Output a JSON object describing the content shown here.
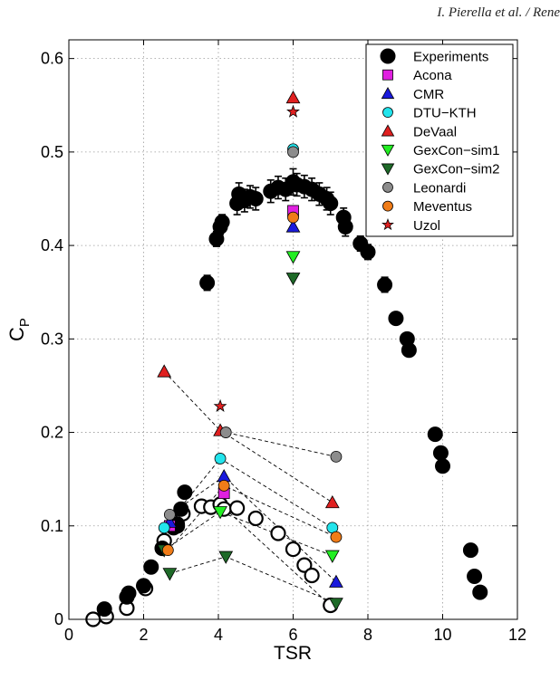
{
  "page": {
    "header_text": "I. Pierella et al. / Rene"
  },
  "chart_data": {
    "type": "scatter",
    "title": "",
    "xlabel": "TSR",
    "ylabel": "C",
    "ylabel_subscript": "P",
    "xlim": [
      0,
      12
    ],
    "ylim": [
      0,
      0.62
    ],
    "xticks": [
      0,
      2,
      4,
      6,
      8,
      10,
      12
    ],
    "yticks": [
      0,
      0.1,
      0.2,
      0.3,
      0.4,
      0.5,
      0.6
    ],
    "xtick_labels": [
      "0",
      "2",
      "4",
      "6",
      "8",
      "10",
      "12"
    ],
    "ytick_labels": [
      "0",
      "0.1",
      "0.2",
      "0.3",
      "0.4",
      "0.5",
      "0.6"
    ],
    "grid": true,
    "legend_position": "top-right",
    "experiments": {
      "name": "Experiments",
      "color": "#000000",
      "filled": [
        {
          "x": 0.95,
          "y": 0.011,
          "err": 0.004
        },
        {
          "x": 1.6,
          "y": 0.028,
          "err": 0.004
        },
        {
          "x": 1.55,
          "y": 0.024,
          "err": 0.004
        },
        {
          "x": 2.0,
          "y": 0.036,
          "err": 0.004
        },
        {
          "x": 2.2,
          "y": 0.056,
          "err": 0.004
        },
        {
          "x": 2.5,
          "y": 0.076,
          "err": 0.004
        },
        {
          "x": 2.8,
          "y": 0.098,
          "err": 0.004
        },
        {
          "x": 2.9,
          "y": 0.102,
          "err": 0.004
        },
        {
          "x": 3.0,
          "y": 0.118,
          "err": 0.004
        },
        {
          "x": 3.1,
          "y": 0.136,
          "err": 0.004
        },
        {
          "x": 3.7,
          "y": 0.36,
          "err": 0.008
        },
        {
          "x": 3.95,
          "y": 0.407,
          "err": 0.008
        },
        {
          "x": 4.05,
          "y": 0.42,
          "err": 0.008
        },
        {
          "x": 4.1,
          "y": 0.425,
          "err": 0.008
        },
        {
          "x": 4.5,
          "y": 0.445,
          "err": 0.012
        },
        {
          "x": 4.55,
          "y": 0.455,
          "err": 0.012
        },
        {
          "x": 4.7,
          "y": 0.448,
          "err": 0.012
        },
        {
          "x": 4.85,
          "y": 0.452,
          "err": 0.012
        },
        {
          "x": 5.0,
          "y": 0.45,
          "err": 0.012
        },
        {
          "x": 5.4,
          "y": 0.458,
          "err": 0.012
        },
        {
          "x": 5.6,
          "y": 0.462,
          "err": 0.012
        },
        {
          "x": 5.8,
          "y": 0.46,
          "err": 0.012
        },
        {
          "x": 6.0,
          "y": 0.468,
          "err": 0.014
        },
        {
          "x": 6.1,
          "y": 0.465,
          "err": 0.012
        },
        {
          "x": 6.3,
          "y": 0.463,
          "err": 0.012
        },
        {
          "x": 6.5,
          "y": 0.46,
          "err": 0.012
        },
        {
          "x": 6.7,
          "y": 0.455,
          "err": 0.012
        },
        {
          "x": 6.9,
          "y": 0.45,
          "err": 0.012
        },
        {
          "x": 7.0,
          "y": 0.445,
          "err": 0.012
        },
        {
          "x": 7.35,
          "y": 0.43,
          "err": 0.01
        },
        {
          "x": 7.4,
          "y": 0.42,
          "err": 0.01
        },
        {
          "x": 7.8,
          "y": 0.402,
          "err": 0.008
        },
        {
          "x": 8.0,
          "y": 0.393,
          "err": 0.008
        },
        {
          "x": 8.45,
          "y": 0.358,
          "err": 0.008
        },
        {
          "x": 8.75,
          "y": 0.322,
          "err": 0.006
        },
        {
          "x": 9.05,
          "y": 0.3,
          "err": 0.006
        },
        {
          "x": 9.1,
          "y": 0.288,
          "err": 0.006
        },
        {
          "x": 9.8,
          "y": 0.198,
          "err": 0.004
        },
        {
          "x": 9.95,
          "y": 0.178,
          "err": 0.004
        },
        {
          "x": 10.0,
          "y": 0.164,
          "err": 0.004
        },
        {
          "x": 10.75,
          "y": 0.074,
          "err": 0.003
        },
        {
          "x": 10.85,
          "y": 0.046,
          "err": 0.003
        },
        {
          "x": 11.0,
          "y": 0.029,
          "err": 0.003
        }
      ],
      "hollow": [
        {
          "x": 0.65,
          "y": 0.0
        },
        {
          "x": 1.0,
          "y": 0.003
        },
        {
          "x": 1.55,
          "y": 0.012
        },
        {
          "x": 2.05,
          "y": 0.033
        },
        {
          "x": 2.5,
          "y": 0.076
        },
        {
          "x": 2.55,
          "y": 0.084
        },
        {
          "x": 2.9,
          "y": 0.1
        },
        {
          "x": 3.05,
          "y": 0.113
        },
        {
          "x": 3.55,
          "y": 0.121
        },
        {
          "x": 3.8,
          "y": 0.12
        },
        {
          "x": 4.05,
          "y": 0.123
        },
        {
          "x": 4.15,
          "y": 0.118
        },
        {
          "x": 4.5,
          "y": 0.119
        },
        {
          "x": 5.0,
          "y": 0.108
        },
        {
          "x": 5.6,
          "y": 0.092
        },
        {
          "x": 6.0,
          "y": 0.075
        },
        {
          "x": 6.3,
          "y": 0.058
        },
        {
          "x": 6.5,
          "y": 0.047
        },
        {
          "x": 7.0,
          "y": 0.015
        }
      ]
    },
    "series": [
      {
        "name": "Acona",
        "marker": "square",
        "color": "#e020e0",
        "points": [
          {
            "x": 2.7,
            "y": 0.1
          },
          {
            "x": 4.15,
            "y": 0.135
          },
          {
            "x": 6.0,
            "y": 0.437
          }
        ]
      },
      {
        "name": "CMR",
        "marker": "triangle-up",
        "color": "#1a1adc",
        "points": [
          {
            "x": 2.7,
            "y": 0.104
          },
          {
            "x": 4.15,
            "y": 0.153
          },
          {
            "x": 6.0,
            "y": 0.42
          },
          {
            "x": 7.15,
            "y": 0.04
          }
        ]
      },
      {
        "name": "DTU−KTH",
        "marker": "circle",
        "color": "#22e4ec",
        "points": [
          {
            "x": 2.55,
            "y": 0.098
          },
          {
            "x": 4.05,
            "y": 0.172
          },
          {
            "x": 6.0,
            "y": 0.503
          },
          {
            "x": 7.05,
            "y": 0.098
          }
        ]
      },
      {
        "name": "DeVaal",
        "marker": "triangle-up",
        "color": "#e02020",
        "points": [
          {
            "x": 2.55,
            "y": 0.265
          },
          {
            "x": 4.05,
            "y": 0.202
          },
          {
            "x": 6.0,
            "y": 0.558
          },
          {
            "x": 7.05,
            "y": 0.125
          }
        ]
      },
      {
        "name": "GexCon−sim1",
        "marker": "triangle-down",
        "color": "#22ee22",
        "points": [
          {
            "x": 4.05,
            "y": 0.115
          },
          {
            "x": 6.0,
            "y": 0.388
          },
          {
            "x": 7.05,
            "y": 0.068
          }
        ]
      },
      {
        "name": "GexCon−sim2",
        "marker": "triangle-down",
        "color": "#1e6a28",
        "points": [
          {
            "x": 2.55,
            "y": 0.074
          },
          {
            "x": 2.7,
            "y": 0.049
          },
          {
            "x": 4.2,
            "y": 0.067
          },
          {
            "x": 6.0,
            "y": 0.365
          },
          {
            "x": 7.15,
            "y": 0.017
          }
        ]
      },
      {
        "name": "Leonardi",
        "marker": "circle",
        "color": "#8c8c8c",
        "points": [
          {
            "x": 2.7,
            "y": 0.112
          },
          {
            "x": 4.2,
            "y": 0.2
          },
          {
            "x": 6.0,
            "y": 0.5
          },
          {
            "x": 7.15,
            "y": 0.174
          }
        ]
      },
      {
        "name": "Meventus",
        "marker": "circle",
        "color": "#f07c18",
        "points": [
          {
            "x": 2.65,
            "y": 0.074
          },
          {
            "x": 4.15,
            "y": 0.143
          },
          {
            "x": 6.0,
            "y": 0.43
          },
          {
            "x": 7.15,
            "y": 0.088
          }
        ]
      },
      {
        "name": "Uzol",
        "marker": "star",
        "color": "#e02020",
        "points": [
          {
            "x": 4.05,
            "y": 0.228
          },
          {
            "x": 6.0,
            "y": 0.543
          }
        ]
      }
    ],
    "dashed_lines": [
      [
        [
          2.55,
          0.265
        ],
        [
          4.05,
          0.202
        ],
        [
          4.2,
          0.2
        ],
        [
          7.15,
          0.174
        ]
      ],
      [
        [
          4.05,
          0.202
        ],
        [
          7.05,
          0.125
        ]
      ],
      [
        [
          2.55,
          0.098
        ],
        [
          4.05,
          0.172
        ],
        [
          7.05,
          0.098
        ]
      ],
      [
        [
          2.7,
          0.112
        ],
        [
          4.15,
          0.153
        ],
        [
          7.15,
          0.04
        ]
      ],
      [
        [
          2.65,
          0.074
        ],
        [
          4.15,
          0.143
        ],
        [
          7.15,
          0.088
        ]
      ],
      [
        [
          2.55,
          0.074
        ],
        [
          4.05,
          0.115
        ],
        [
          7.05,
          0.068
        ]
      ],
      [
        [
          2.7,
          0.049
        ],
        [
          4.2,
          0.067
        ],
        [
          7.15,
          0.017
        ]
      ],
      [
        [
          4.05,
          0.123
        ],
        [
          7.0,
          0.015
        ]
      ]
    ]
  }
}
